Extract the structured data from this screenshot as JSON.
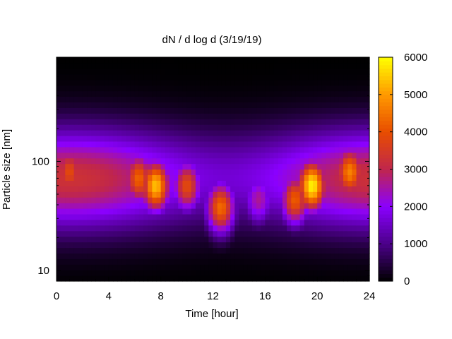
{
  "chart_data": {
    "type": "heatmap",
    "title": "dN / d log d (3/19/19)",
    "xlabel": "Time [hour]",
    "ylabel": "Particle size [nm]",
    "xlim": [
      0,
      24
    ],
    "ylim": [
      8,
      900
    ],
    "y_scale": "log",
    "x_ticks": [
      0,
      4,
      8,
      12,
      16,
      20,
      24
    ],
    "x_tick_labels": [
      "0",
      "4",
      "8",
      "12",
      "16",
      "20",
      "24"
    ],
    "y_ticks": [
      10,
      100
    ],
    "y_tick_labels": [
      "10",
      "100"
    ],
    "colorbar": {
      "range": [
        0,
        6000
      ],
      "ticks": [
        0,
        1000,
        2000,
        3000,
        4000,
        5000,
        6000
      ],
      "tick_labels": [
        "0",
        "1000",
        "2000",
        "3000",
        "4000",
        "5000",
        "6000"
      ],
      "palette": [
        "#000000",
        "#4b0088",
        "#8a00ff",
        "#c0264c",
        "#e84d00",
        "#ff9900",
        "#ffff00"
      ]
    },
    "background_field": {
      "description_units": "dN/dlogd",
      "baseline_peak_size_nm": 70,
      "baseline_peak_value": 3300
    },
    "modes": [
      {
        "time_h": 1.0,
        "size_nm": 80,
        "value": 3900
      },
      {
        "time_h": 6.3,
        "size_nm": 70,
        "value": 4300
      },
      {
        "time_h": 7.6,
        "size_nm": 60,
        "value": 5400
      },
      {
        "time_h": 10.0,
        "size_nm": 60,
        "value": 3900
      },
      {
        "time_h": 12.6,
        "size_nm": 38,
        "value": 4400
      },
      {
        "time_h": 15.5,
        "size_nm": 45,
        "value": 2600
      },
      {
        "time_h": 18.3,
        "size_nm": 45,
        "value": 4200
      },
      {
        "time_h": 19.6,
        "size_nm": 60,
        "value": 5900
      },
      {
        "time_h": 22.5,
        "size_nm": 80,
        "value": 4700
      }
    ]
  }
}
